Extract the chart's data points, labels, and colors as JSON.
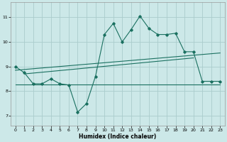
{
  "xlabel": "Humidex (Indice chaleur)",
  "background_color": "#cce8e8",
  "grid_color": "#aacccc",
  "line_color": "#1a7060",
  "xlim": [
    -0.5,
    23.5
  ],
  "ylim": [
    6.6,
    11.6
  ],
  "yticks": [
    7,
    8,
    9,
    10,
    11
  ],
  "xticks": [
    0,
    1,
    2,
    3,
    4,
    5,
    6,
    7,
    8,
    9,
    10,
    11,
    12,
    13,
    14,
    15,
    16,
    17,
    18,
    19,
    20,
    21,
    22,
    23
  ],
  "series1_x": [
    0,
    1,
    2,
    3,
    4,
    5,
    6,
    7,
    8,
    9,
    10,
    11,
    12,
    13,
    14,
    15,
    16,
    17,
    18,
    19,
    20,
    21,
    22,
    23
  ],
  "series1_y": [
    9.0,
    8.75,
    8.3,
    8.3,
    8.5,
    8.3,
    8.25,
    7.15,
    7.5,
    8.6,
    10.3,
    10.75,
    10.0,
    10.5,
    11.05,
    10.55,
    10.3,
    10.3,
    10.35,
    9.6,
    9.6,
    8.4,
    8.4,
    8.4
  ],
  "trend1_x": [
    0,
    23
  ],
  "trend1_y": [
    8.85,
    9.55
  ],
  "trend2_x": [
    0,
    23
  ],
  "trend2_y": [
    8.28,
    8.28
  ],
  "trend3_x": [
    1,
    20
  ],
  "trend3_y": [
    8.7,
    9.35
  ]
}
